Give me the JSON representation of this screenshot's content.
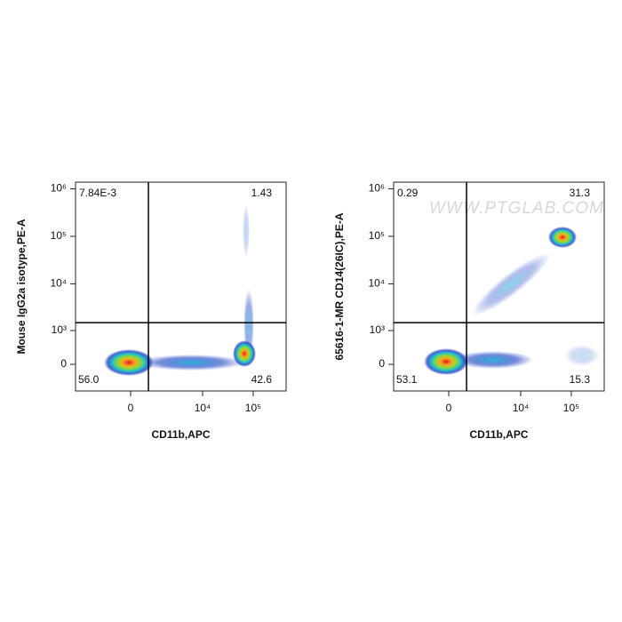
{
  "chart_data": [
    {
      "type": "scatter",
      "xlabel": "CD11b,APC",
      "ylabel": "Mouse IgG2a isotype,PE-A",
      "xscale": {
        "type": "arcsinh",
        "width": 760
      },
      "yscale": {
        "type": "arcsinh",
        "width": 405
      },
      "xlim": [
        -4620,
        447000
      ],
      "ylim": [
        -680,
        1380000
      ],
      "xticks": [
        0,
        {
          "value": 10000,
          "label": "10⁴"
        },
        {
          "value": 100000,
          "label": "10⁵"
        }
      ],
      "yticks": [
        0,
        {
          "value": 1000,
          "label": "10³"
        },
        {
          "value": 10000,
          "label": "10⁴"
        },
        {
          "value": 100000,
          "label": "10⁵"
        },
        {
          "value": 1000000,
          "label": "10⁶"
        }
      ],
      "gates": {
        "x": 685,
        "y": 1500
      },
      "quadrants": {
        "names": [
          "upper-left",
          "upper-right",
          "lower-left",
          "lower-right"
        ],
        "values": [
          0.00784,
          1.43,
          56.0,
          42.6
        ],
        "value_labels": [
          "7.84E-3",
          "1.43",
          "56.0",
          "42.6"
        ]
      }
    },
    {
      "type": "scatter",
      "xlabel": "CD11b,APC",
      "ylabel": "65616-1-MR CD14(26IC),PE-A",
      "watermark": "WWW.PTGLAB.COM",
      "xscale": {
        "type": "arcsinh",
        "width": 760
      },
      "yscale": {
        "type": "arcsinh",
        "width": 405
      },
      "xlim": [
        -4620,
        447000
      ],
      "ylim": [
        -680,
        1380000
      ],
      "xticks": [
        0,
        {
          "value": 10000,
          "label": "10⁴"
        },
        {
          "value": 100000,
          "label": "10⁵"
        }
      ],
      "yticks": [
        0,
        {
          "value": 1000,
          "label": "10³"
        },
        {
          "value": 10000,
          "label": "10⁴"
        },
        {
          "value": 100000,
          "label": "10⁵"
        },
        {
          "value": 1000000,
          "label": "10⁶"
        }
      ],
      "gates": {
        "x": 685,
        "y": 1500
      },
      "quadrants": {
        "names": [
          "upper-left",
          "upper-right",
          "lower-left",
          "lower-right"
        ],
        "values": [
          0.29,
          31.3,
          53.1,
          15.3
        ],
        "value_labels": [
          "0.29",
          "31.3",
          "53.1",
          "15.3"
        ]
      }
    }
  ]
}
